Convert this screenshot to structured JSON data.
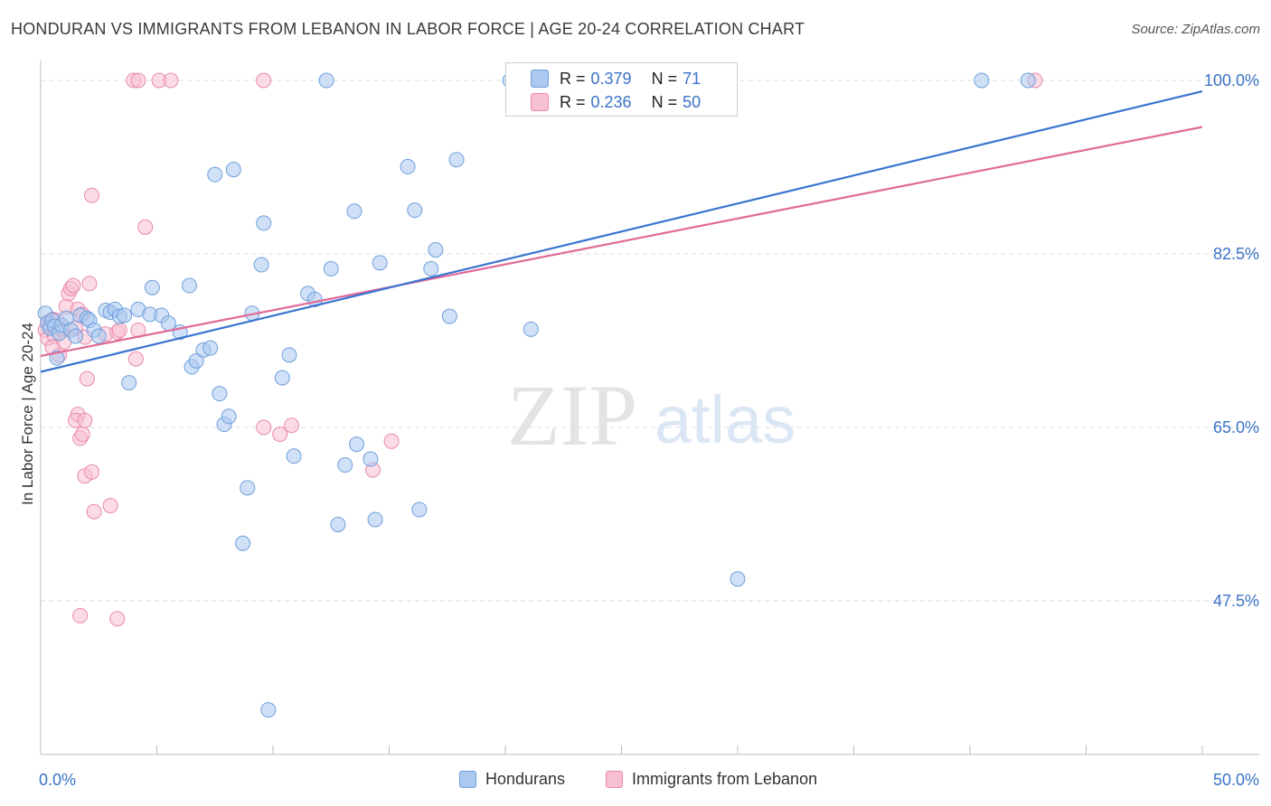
{
  "header": {
    "title": "HONDURAN VS IMMIGRANTS FROM LEBANON IN LABOR FORCE | AGE 20-24 CORRELATION CHART",
    "source": "Source: ZipAtlas.com"
  },
  "watermark": {
    "zip": "ZIP",
    "atlas": "atlas"
  },
  "stats": {
    "r_label": "R =",
    "n_label": "N =",
    "rows": [
      {
        "r": "0.379",
        "n": "71"
      },
      {
        "r": "0.236",
        "n": "50"
      }
    ]
  },
  "legend": {
    "items": [
      {
        "label": "Hondurans"
      },
      {
        "label": "Immigrants from Lebanon"
      }
    ]
  },
  "colors": {
    "blue_fill": "#aac8f0",
    "blue_stroke": "#6f9fdc",
    "blue_line": "#3a74d0",
    "pink_fill": "#f7bfd2",
    "pink_stroke": "#e98aab",
    "pink_line": "#e06a98",
    "tick_label": "#3a72c6",
    "grid": "#dedede"
  },
  "chart_data": {
    "type": "scatter",
    "title": "HONDURAN VS IMMIGRANTS FROM LEBANON IN LABOR FORCE | AGE 20-24 CORRELATION CHART",
    "xlabel": "",
    "ylabel": "In Labor Force | Age 20-24",
    "xlim": [
      0,
      50
    ],
    "ylim": [
      32,
      102
    ],
    "x_tick_labels": [
      {
        "value": 0,
        "label": "0.0%"
      },
      {
        "value": 50,
        "label": "50.0%"
      }
    ],
    "y_tick_labels": [
      {
        "value": 100,
        "label": "100.0%"
      },
      {
        "value": 82.5,
        "label": "82.5%"
      },
      {
        "value": 65,
        "label": "65.0%"
      },
      {
        "value": 47.5,
        "label": "47.5%"
      }
    ],
    "grid": true,
    "legend_position": "bottom",
    "series": [
      {
        "name": "Hondurans",
        "R": 0.379,
        "N": 71,
        "trend": [
          [
            0,
            70.6
          ],
          [
            50,
            98.9
          ]
        ],
        "points": [
          [
            0.2,
            76.5
          ],
          [
            0.3,
            75.5
          ],
          [
            0.4,
            75.0
          ],
          [
            0.5,
            75.8
          ],
          [
            0.6,
            75.2
          ],
          [
            0.7,
            72.0
          ],
          [
            0.8,
            74.5
          ],
          [
            0.9,
            75.3
          ],
          [
            1.1,
            76.0
          ],
          [
            1.3,
            74.8
          ],
          [
            1.5,
            74.2
          ],
          [
            1.7,
            76.3
          ],
          [
            2.0,
            76.0
          ],
          [
            2.1,
            75.8
          ],
          [
            2.3,
            74.8
          ],
          [
            2.5,
            74.2
          ],
          [
            2.8,
            76.8
          ],
          [
            3.0,
            76.6
          ],
          [
            3.2,
            76.9
          ],
          [
            3.4,
            76.2
          ],
          [
            3.6,
            76.3
          ],
          [
            3.8,
            69.5
          ],
          [
            4.2,
            76.9
          ],
          [
            4.7,
            76.4
          ],
          [
            5.2,
            76.3
          ],
          [
            5.5,
            75.5
          ],
          [
            6.0,
            74.6
          ],
          [
            4.8,
            79.1
          ],
          [
            6.4,
            79.3
          ],
          [
            6.5,
            71.1
          ],
          [
            6.7,
            71.7
          ],
          [
            7.0,
            72.8
          ],
          [
            7.3,
            73.0
          ],
          [
            7.7,
            68.4
          ],
          [
            7.9,
            65.3
          ],
          [
            8.1,
            66.1
          ],
          [
            7.5,
            90.5
          ],
          [
            8.3,
            91.0
          ],
          [
            8.7,
            53.3
          ],
          [
            8.9,
            58.9
          ],
          [
            9.1,
            76.5
          ],
          [
            9.5,
            81.4
          ],
          [
            9.6,
            85.6
          ],
          [
            9.8,
            36.5
          ],
          [
            10.4,
            70.0
          ],
          [
            10.7,
            72.3
          ],
          [
            10.9,
            62.1
          ],
          [
            11.5,
            78.5
          ],
          [
            11.8,
            77.9
          ],
          [
            12.3,
            100.0
          ],
          [
            12.5,
            81.0
          ],
          [
            12.8,
            55.2
          ],
          [
            13.1,
            61.2
          ],
          [
            13.5,
            86.8
          ],
          [
            13.6,
            63.3
          ],
          [
            14.2,
            61.8
          ],
          [
            14.4,
            55.7
          ],
          [
            14.6,
            81.6
          ],
          [
            15.8,
            91.3
          ],
          [
            16.1,
            86.9
          ],
          [
            16.3,
            56.7
          ],
          [
            16.8,
            81.0
          ],
          [
            17.0,
            82.9
          ],
          [
            17.6,
            76.2
          ],
          [
            17.9,
            92.0
          ],
          [
            21.1,
            74.9
          ],
          [
            20.2,
            100.0
          ],
          [
            22.6,
            100.0
          ],
          [
            30.0,
            49.7
          ],
          [
            40.5,
            100.0
          ],
          [
            42.5,
            100.0
          ]
        ]
      },
      {
        "name": "Immigrants from Lebanon",
        "R": 0.236,
        "N": 50,
        "trend": [
          [
            0,
            72.2
          ],
          [
            50,
            95.3
          ]
        ],
        "points": [
          [
            0.2,
            74.8
          ],
          [
            0.3,
            75.6
          ],
          [
            0.3,
            74.0
          ],
          [
            0.4,
            75.3
          ],
          [
            0.5,
            75.9
          ],
          [
            0.6,
            74.2
          ],
          [
            0.7,
            75.8
          ],
          [
            0.8,
            72.3
          ],
          [
            0.9,
            74.9
          ],
          [
            1.0,
            73.6
          ],
          [
            1.1,
            77.2
          ],
          [
            1.2,
            78.5
          ],
          [
            1.3,
            79.0
          ],
          [
            1.4,
            79.3
          ],
          [
            1.5,
            75.0
          ],
          [
            1.6,
            76.9
          ],
          [
            1.8,
            76.4
          ],
          [
            1.9,
            74.1
          ],
          [
            2.0,
            69.9
          ],
          [
            1.6,
            66.3
          ],
          [
            1.5,
            65.7
          ],
          [
            1.7,
            63.9
          ],
          [
            1.8,
            64.3
          ],
          [
            1.9,
            60.1
          ],
          [
            1.9,
            65.7
          ],
          [
            2.1,
            79.5
          ],
          [
            2.2,
            88.4
          ],
          [
            2.2,
            60.5
          ],
          [
            2.3,
            56.5
          ],
          [
            2.8,
            74.4
          ],
          [
            3.0,
            57.1
          ],
          [
            3.3,
            74.6
          ],
          [
            3.4,
            74.8
          ],
          [
            1.7,
            46.0
          ],
          [
            3.3,
            45.7
          ],
          [
            4.0,
            100.0
          ],
          [
            4.2,
            100.0
          ],
          [
            4.1,
            71.9
          ],
          [
            4.2,
            74.8
          ],
          [
            4.5,
            85.2
          ],
          [
            5.1,
            100.0
          ],
          [
            5.6,
            100.0
          ],
          [
            9.6,
            100.0
          ],
          [
            9.6,
            65.0
          ],
          [
            10.3,
            64.3
          ],
          [
            10.8,
            65.2
          ],
          [
            14.3,
            60.7
          ],
          [
            15.1,
            63.6
          ],
          [
            42.8,
            100.0
          ],
          [
            0.5,
            73.1
          ]
        ]
      }
    ]
  }
}
